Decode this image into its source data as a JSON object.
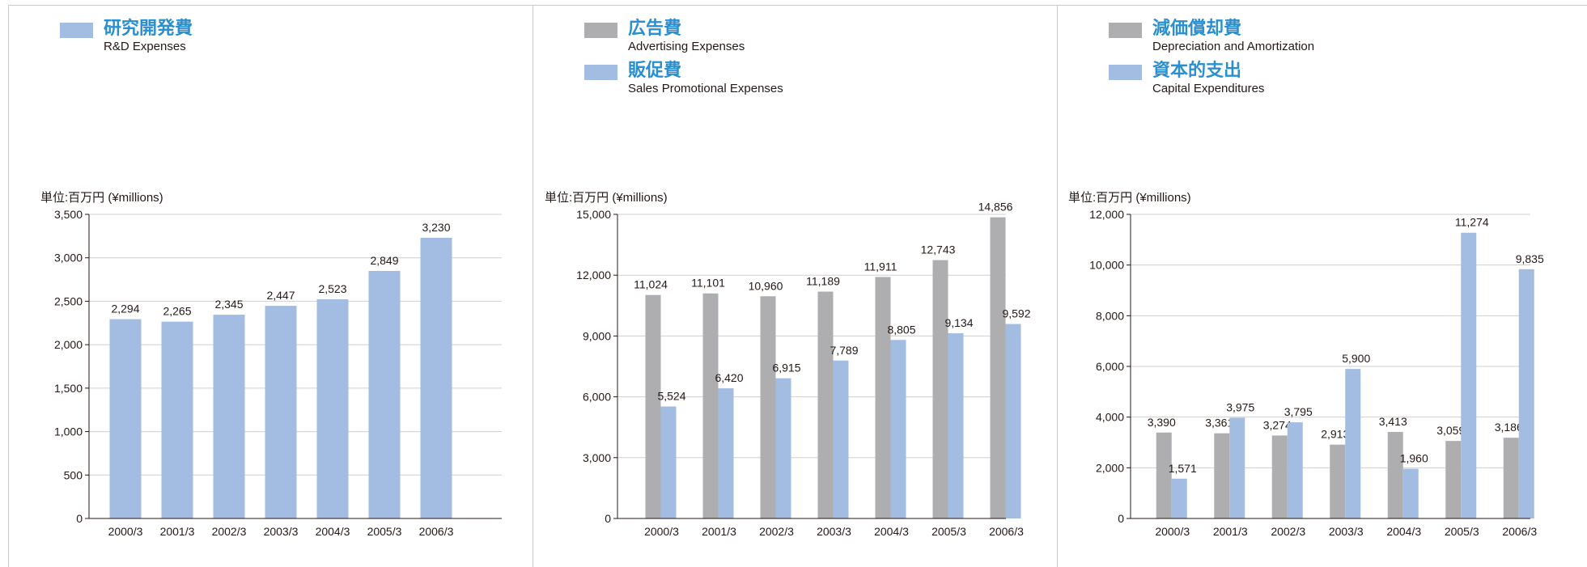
{
  "colors": {
    "blue": "#a3bde2",
    "gray": "#aeaeb0",
    "title": "#2a8fd0",
    "grid": "#cfcfcf",
    "axis": "#231815"
  },
  "chart_data": [
    {
      "type": "bar",
      "legend": [
        {
          "jp": "研究開発費",
          "en": "R&D Expenses",
          "color": "#a3bde2"
        }
      ],
      "unit_label": "単位:百万円 (¥millions)",
      "categories": [
        "2000/3",
        "2001/3",
        "2002/3",
        "2003/3",
        "2004/3",
        "2005/3",
        "2006/3"
      ],
      "series": [
        {
          "name": "研究開発費",
          "values": [
            2294,
            2265,
            2345,
            2447,
            2523,
            2849,
            3230
          ],
          "labels": [
            "2,294",
            "2,265",
            "2,345",
            "2,447",
            "2,523",
            "2,849",
            "3,230"
          ]
        }
      ],
      "ylim": [
        0,
        3500
      ],
      "yticks": [
        0,
        500,
        1000,
        1500,
        2000,
        2500,
        3000,
        3500
      ],
      "ytick_labels": [
        "0",
        "500",
        "1,000",
        "1,500",
        "2,000",
        "2,500",
        "3,000",
        "3,500"
      ],
      "grid": true
    },
    {
      "type": "bar",
      "legend": [
        {
          "jp": "広告費",
          "en": "Advertising Expenses",
          "color": "#aeaeb0"
        },
        {
          "jp": "販促費",
          "en": "Sales Promotional Expenses",
          "color": "#a3bde2"
        }
      ],
      "unit_label": "単位:百万円 (¥millions)",
      "categories": [
        "2000/3",
        "2001/3",
        "2002/3",
        "2003/3",
        "2004/3",
        "2005/3",
        "2006/3"
      ],
      "series": [
        {
          "name": "広告費",
          "values": [
            11024,
            11101,
            10960,
            11189,
            11911,
            12743,
            14856
          ],
          "labels": [
            "11,024",
            "11,101",
            "10,960",
            "11,189",
            "11,911",
            "12,743",
            "14,856"
          ]
        },
        {
          "name": "販促費",
          "values": [
            5524,
            6420,
            6915,
            7789,
            8805,
            9134,
            9592
          ],
          "labels": [
            "5,524",
            "6,420",
            "6,915",
            "7,789",
            "8,805",
            "9,134",
            "9,592"
          ]
        }
      ],
      "ylim": [
        0,
        15000
      ],
      "yticks": [
        0,
        3000,
        6000,
        9000,
        12000,
        15000
      ],
      "ytick_labels": [
        "0",
        "3,000",
        "6,000",
        "9,000",
        "12,000",
        "15,000"
      ],
      "grid": true
    },
    {
      "type": "bar",
      "legend": [
        {
          "jp": "減価償却費",
          "en": "Depreciation and Amortization",
          "color": "#aeaeb0"
        },
        {
          "jp": "資本的支出",
          "en": "Capital Expenditures",
          "color": "#a3bde2"
        }
      ],
      "unit_label": "単位:百万円 (¥millions)",
      "categories": [
        "2000/3",
        "2001/3",
        "2002/3",
        "2003/3",
        "2004/3",
        "2005/3",
        "2006/3"
      ],
      "series": [
        {
          "name": "減価償却費",
          "values": [
            3390,
            3361,
            3274,
            2913,
            3413,
            3059,
            3186
          ],
          "labels": [
            "3,390",
            "3,361",
            "3,274",
            "2,913",
            "3,413",
            "3,059",
            "3,186"
          ]
        },
        {
          "name": "資本的支出",
          "values": [
            1571,
            3975,
            3795,
            5900,
            1960,
            11274,
            9835
          ],
          "labels": [
            "1,571",
            "3,975",
            "3,795",
            "5,900",
            "1,960",
            "11,274",
            "9,835"
          ]
        }
      ],
      "ylim": [
        0,
        12000
      ],
      "yticks": [
        0,
        2000,
        4000,
        6000,
        8000,
        10000,
        12000
      ],
      "ytick_labels": [
        "0",
        "2,000",
        "4,000",
        "6,000",
        "8,000",
        "10,000",
        "12,000"
      ],
      "grid": true
    }
  ]
}
